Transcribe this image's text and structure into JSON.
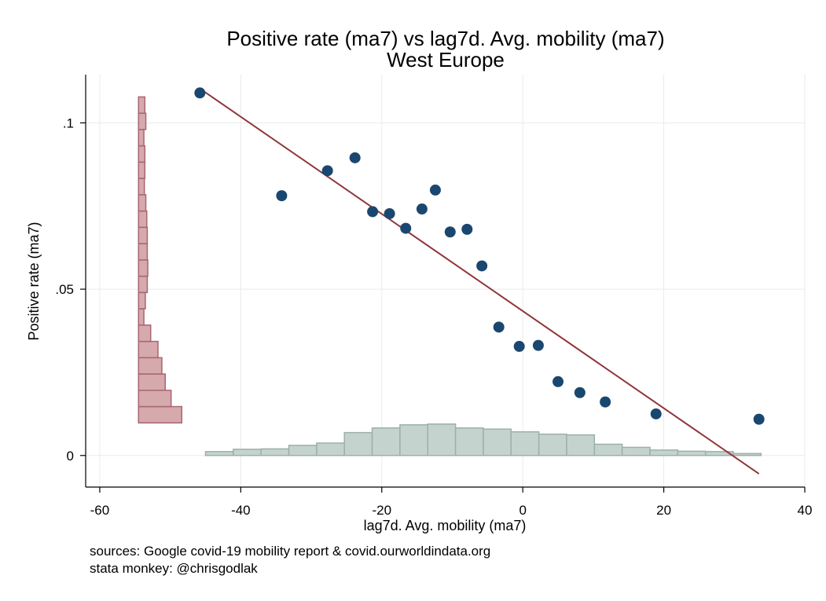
{
  "chart_data": {
    "type": "scatter",
    "title": "Positive rate (ma7) vs lag7d. Avg. mobility (ma7)",
    "subtitle": "West Europe",
    "xlabel": "lag7d. Avg. mobility (ma7)",
    "ylabel": "Positive rate (ma7)",
    "xlim": [
      -62,
      40
    ],
    "ylim": [
      -0.0095,
      0.1145
    ],
    "xticks": [
      -60,
      -40,
      -20,
      0,
      20,
      40
    ],
    "xtick_labels": [
      "-60",
      "-40",
      "-20",
      "0",
      "20",
      "40"
    ],
    "yticks": [
      0,
      0.05,
      0.1
    ],
    "ytick_labels": [
      "0",
      ".05",
      ".1"
    ],
    "grid": true,
    "points": [
      {
        "x": -45.8,
        "y": 0.109
      },
      {
        "x": -34.2,
        "y": 0.0781
      },
      {
        "x": -27.7,
        "y": 0.0856
      },
      {
        "x": -23.8,
        "y": 0.0895
      },
      {
        "x": -21.3,
        "y": 0.0733
      },
      {
        "x": -18.9,
        "y": 0.0727
      },
      {
        "x": -16.6,
        "y": 0.0683
      },
      {
        "x": -14.3,
        "y": 0.0741
      },
      {
        "x": -12.4,
        "y": 0.0798
      },
      {
        "x": -10.3,
        "y": 0.0672
      },
      {
        "x": -7.9,
        "y": 0.068
      },
      {
        "x": -5.8,
        "y": 0.057
      },
      {
        "x": -3.4,
        "y": 0.0386
      },
      {
        "x": -0.5,
        "y": 0.0328
      },
      {
        "x": 2.2,
        "y": 0.0331
      },
      {
        "x": 5.0,
        "y": 0.0222
      },
      {
        "x": 8.1,
        "y": 0.0189
      },
      {
        "x": 11.7,
        "y": 0.0161
      },
      {
        "x": 18.9,
        "y": 0.0125
      },
      {
        "x": 33.5,
        "y": 0.0109
      }
    ],
    "fit_line": {
      "x": [
        -45.8,
        33.5
      ],
      "y": [
        0.1103,
        -0.0055
      ]
    },
    "x_histogram": {
      "bin_start": -45,
      "bin_width": 3.94,
      "heights": [
        1,
        1.6,
        1.7,
        2.6,
        3.2,
        5.9,
        7.1,
        7.9,
        8.1,
        7.1,
        6.8,
        6.1,
        5.5,
        5.3,
        2.9,
        2.1,
        1.4,
        1.1,
        1.0,
        0.5
      ]
    },
    "y_histogram": {
      "bin_start": 0.0098,
      "bin_width": 0.0049,
      "widths": [
        8.9,
        6.7,
        5.5,
        4.8,
        4.0,
        2.5,
        1.1,
        1.4,
        1.8,
        1.9,
        1.8,
        1.8,
        1.7,
        1.5,
        1.2,
        1.3,
        1.3,
        1.1,
        1.5,
        1.3
      ]
    },
    "colors": {
      "points": "#1a476f",
      "fit_line": "#90353b",
      "x_hist_fill": "#c5d3cf",
      "x_hist_stroke": "#9cb0aa",
      "y_hist_fill": "#d6a9ad",
      "y_hist_stroke": "#a86670",
      "grid": "#eaeaea"
    }
  },
  "notes": {
    "line1": "sources: Google covid-19 mobility report & covid.ourworldindata.org",
    "line2": "stata monkey: @chrisgodlak"
  }
}
